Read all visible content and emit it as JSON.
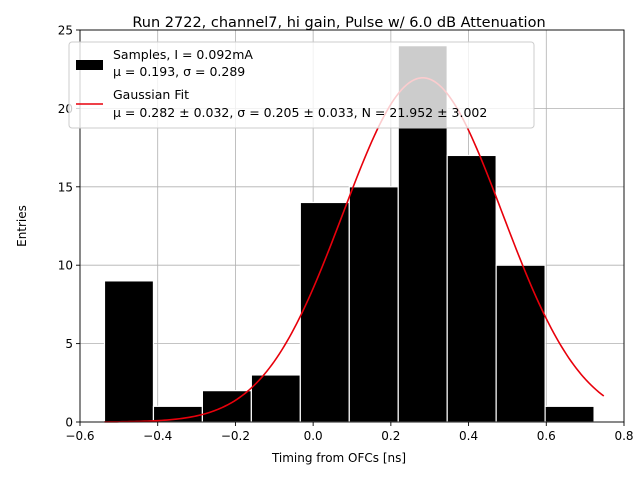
{
  "chart_data": {
    "type": "bar",
    "title": "Run 2722, channel7, hi gain, Pulse w/ 6.0 dB Attenuation",
    "xlabel": "Timing from OFCs [ns]",
    "ylabel": "Entries",
    "xlim": [
      -0.6,
      0.8
    ],
    "ylim": [
      0,
      25
    ],
    "xticks": [
      -0.6,
      -0.4,
      -0.2,
      0.0,
      0.2,
      0.4,
      0.6,
      0.8
    ],
    "xtick_labels": [
      "−0.6",
      "−0.4",
      "−0.2",
      "0.0",
      "0.2",
      "0.4",
      "0.6",
      "0.8"
    ],
    "yticks": [
      0,
      5,
      10,
      15,
      20,
      25
    ],
    "ytick_labels": [
      "0",
      "5",
      "10",
      "15",
      "20",
      "25"
    ],
    "grid": true,
    "legend_position": "top-left",
    "histogram": {
      "bin_edges": [
        -0.537,
        -0.411,
        -0.285,
        -0.159,
        -0.033,
        0.093,
        0.219,
        0.345,
        0.471,
        0.597,
        0.723
      ],
      "counts": [
        9,
        1,
        2,
        3,
        14,
        15,
        24,
        17,
        10,
        1
      ],
      "color": "#000000",
      "edge_color": "#ffffff"
    },
    "fit": {
      "mu": 0.282,
      "sigma": 0.205,
      "N": 21.952,
      "x_range": [
        -0.537,
        0.748
      ],
      "color": "#e8000b"
    },
    "legend": [
      {
        "kind": "patch",
        "line1": "Samples, I = 0.092mA",
        "line2": "μ = 0.193, σ = 0.289",
        "color": "#000000"
      },
      {
        "kind": "line",
        "line1": "Gaussian Fit",
        "line2": "μ = 0.282 ± 0.032, σ = 0.205 ± 0.033, N = 21.952 ± 3.002",
        "color": "#e8000b"
      }
    ]
  }
}
